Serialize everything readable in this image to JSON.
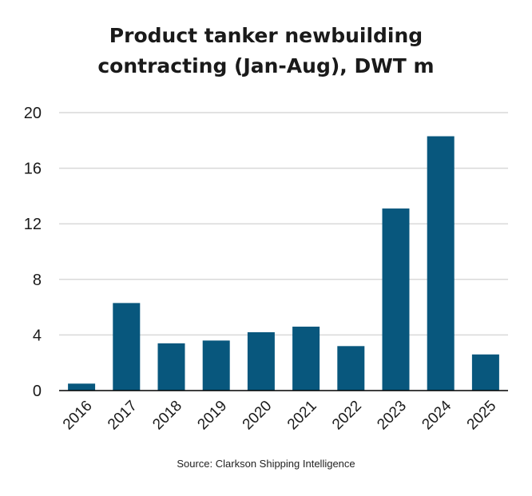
{
  "chart_data": {
    "type": "bar",
    "title_lines": [
      "Product tanker newbuilding",
      "contracting (Jan-Aug), DWT m"
    ],
    "categories": [
      "2016",
      "2017",
      "2018",
      "2019",
      "2020",
      "2021",
      "2022",
      "2023",
      "2024",
      "2025"
    ],
    "values": [
      0.5,
      6.3,
      3.4,
      3.6,
      4.2,
      4.6,
      3.2,
      13.1,
      18.3,
      2.6
    ],
    "ylim": [
      0,
      20
    ],
    "yticks": [
      "0",
      "4",
      "8",
      "12",
      "16",
      "20"
    ],
    "xlabel": "",
    "ylabel": "",
    "grid": true,
    "bar_color": "#08577d",
    "grid_color": "#d9d9d9",
    "axis_color": "#000000"
  },
  "source": "Source: Clarkson Shipping Intelligence"
}
